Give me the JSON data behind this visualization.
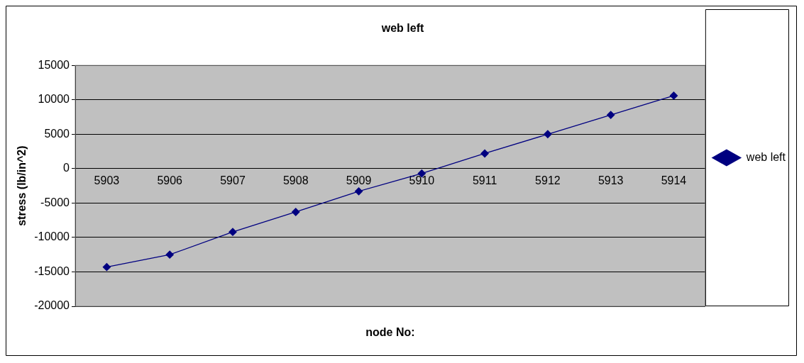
{
  "chart_data": {
    "type": "line",
    "title": "web left",
    "xlabel": "node No:",
    "ylabel": "stress (lb/in^2)",
    "categories": [
      "5903",
      "5906",
      "5907",
      "5908",
      "5909",
      "5910",
      "5911",
      "5912",
      "5913",
      "5914"
    ],
    "series": [
      {
        "name": "web left",
        "color": "#000080",
        "values": [
          -14300,
          -12500,
          -9200,
          -6300,
          -3300,
          -700,
          2200,
          5000,
          7800,
          10600
        ]
      }
    ],
    "ylim": [
      -20000,
      15000
    ],
    "yticks": [
      -20000,
      -15000,
      -10000,
      -5000,
      0,
      5000,
      10000,
      15000
    ],
    "grid": "y",
    "legend": "right",
    "marker": "diamond",
    "line_style": "solid"
  }
}
